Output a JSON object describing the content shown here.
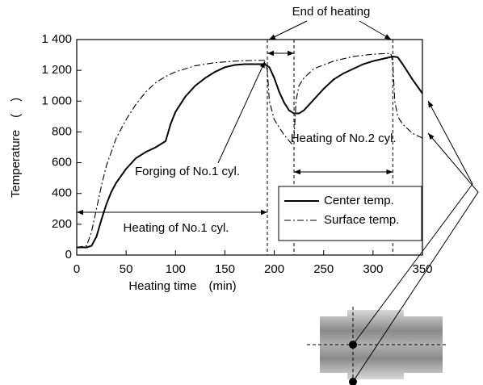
{
  "chart_data": {
    "type": "line",
    "xlabel": "Heating time　(min)",
    "ylabel": "Temperature　(　)",
    "xlim": [
      0,
      350
    ],
    "xticks": [
      0,
      50,
      100,
      150,
      200,
      250,
      300,
      350
    ],
    "ylim": [
      0,
      1400
    ],
    "yticks": [
      0,
      200,
      400,
      600,
      800,
      {
        "value": 1000,
        "label": "1 000"
      },
      {
        "value": 1200,
        "label": "1 200"
      },
      {
        "value": 1400,
        "label": "1 400"
      }
    ],
    "grid": false,
    "legend": "lower right",
    "vlines": [
      193,
      220,
      320
    ],
    "annotations": [
      "End of heating",
      "Forging of No.1 cyl.",
      "Heating of No.1 cyl.",
      "Heating of No.2 cyl."
    ],
    "series": [
      {
        "name": "Center temp.",
        "color": "#000000",
        "style": "solid",
        "x": [
          0,
          10,
          15,
          20,
          25,
          30,
          35,
          40,
          50,
          60,
          70,
          80,
          90,
          95,
          100,
          110,
          120,
          130,
          140,
          150,
          160,
          170,
          180,
          190,
          195,
          200,
          205,
          210,
          215,
          220,
          225,
          230,
          240,
          250,
          260,
          270,
          280,
          290,
          300,
          310,
          320,
          325,
          330,
          340,
          350
        ],
        "values": [
          50,
          50,
          60,
          120,
          230,
          330,
          410,
          470,
          560,
          630,
          670,
          700,
          740,
          850,
          930,
          1030,
          1100,
          1150,
          1190,
          1220,
          1235,
          1240,
          1240,
          1240,
          1220,
          1150,
          1060,
          990,
          940,
          920,
          920,
          940,
          1010,
          1080,
          1140,
          1180,
          1210,
          1240,
          1260,
          1275,
          1290,
          1285,
          1240,
          1140,
          1050
        ]
      },
      {
        "name": "Surface temp.",
        "color": "#000000",
        "style": "dashdot",
        "x": [
          0,
          10,
          15,
          20,
          25,
          30,
          40,
          50,
          60,
          70,
          80,
          90,
          100,
          110,
          120,
          140,
          160,
          180,
          190,
          193,
          195,
          200,
          210,
          218,
          220,
          222,
          225,
          230,
          240,
          260,
          280,
          300,
          318,
          320,
          322,
          325,
          330,
          340,
          350
        ],
        "values": [
          50,
          60,
          150,
          300,
          450,
          580,
          760,
          880,
          980,
          1060,
          1120,
          1160,
          1190,
          1210,
          1230,
          1250,
          1260,
          1265,
          1265,
          1200,
          1000,
          880,
          780,
          720,
          760,
          1000,
          1100,
          1150,
          1210,
          1260,
          1290,
          1305,
          1310,
          1250,
          1000,
          900,
          850,
          790,
          760
        ]
      }
    ]
  }
}
